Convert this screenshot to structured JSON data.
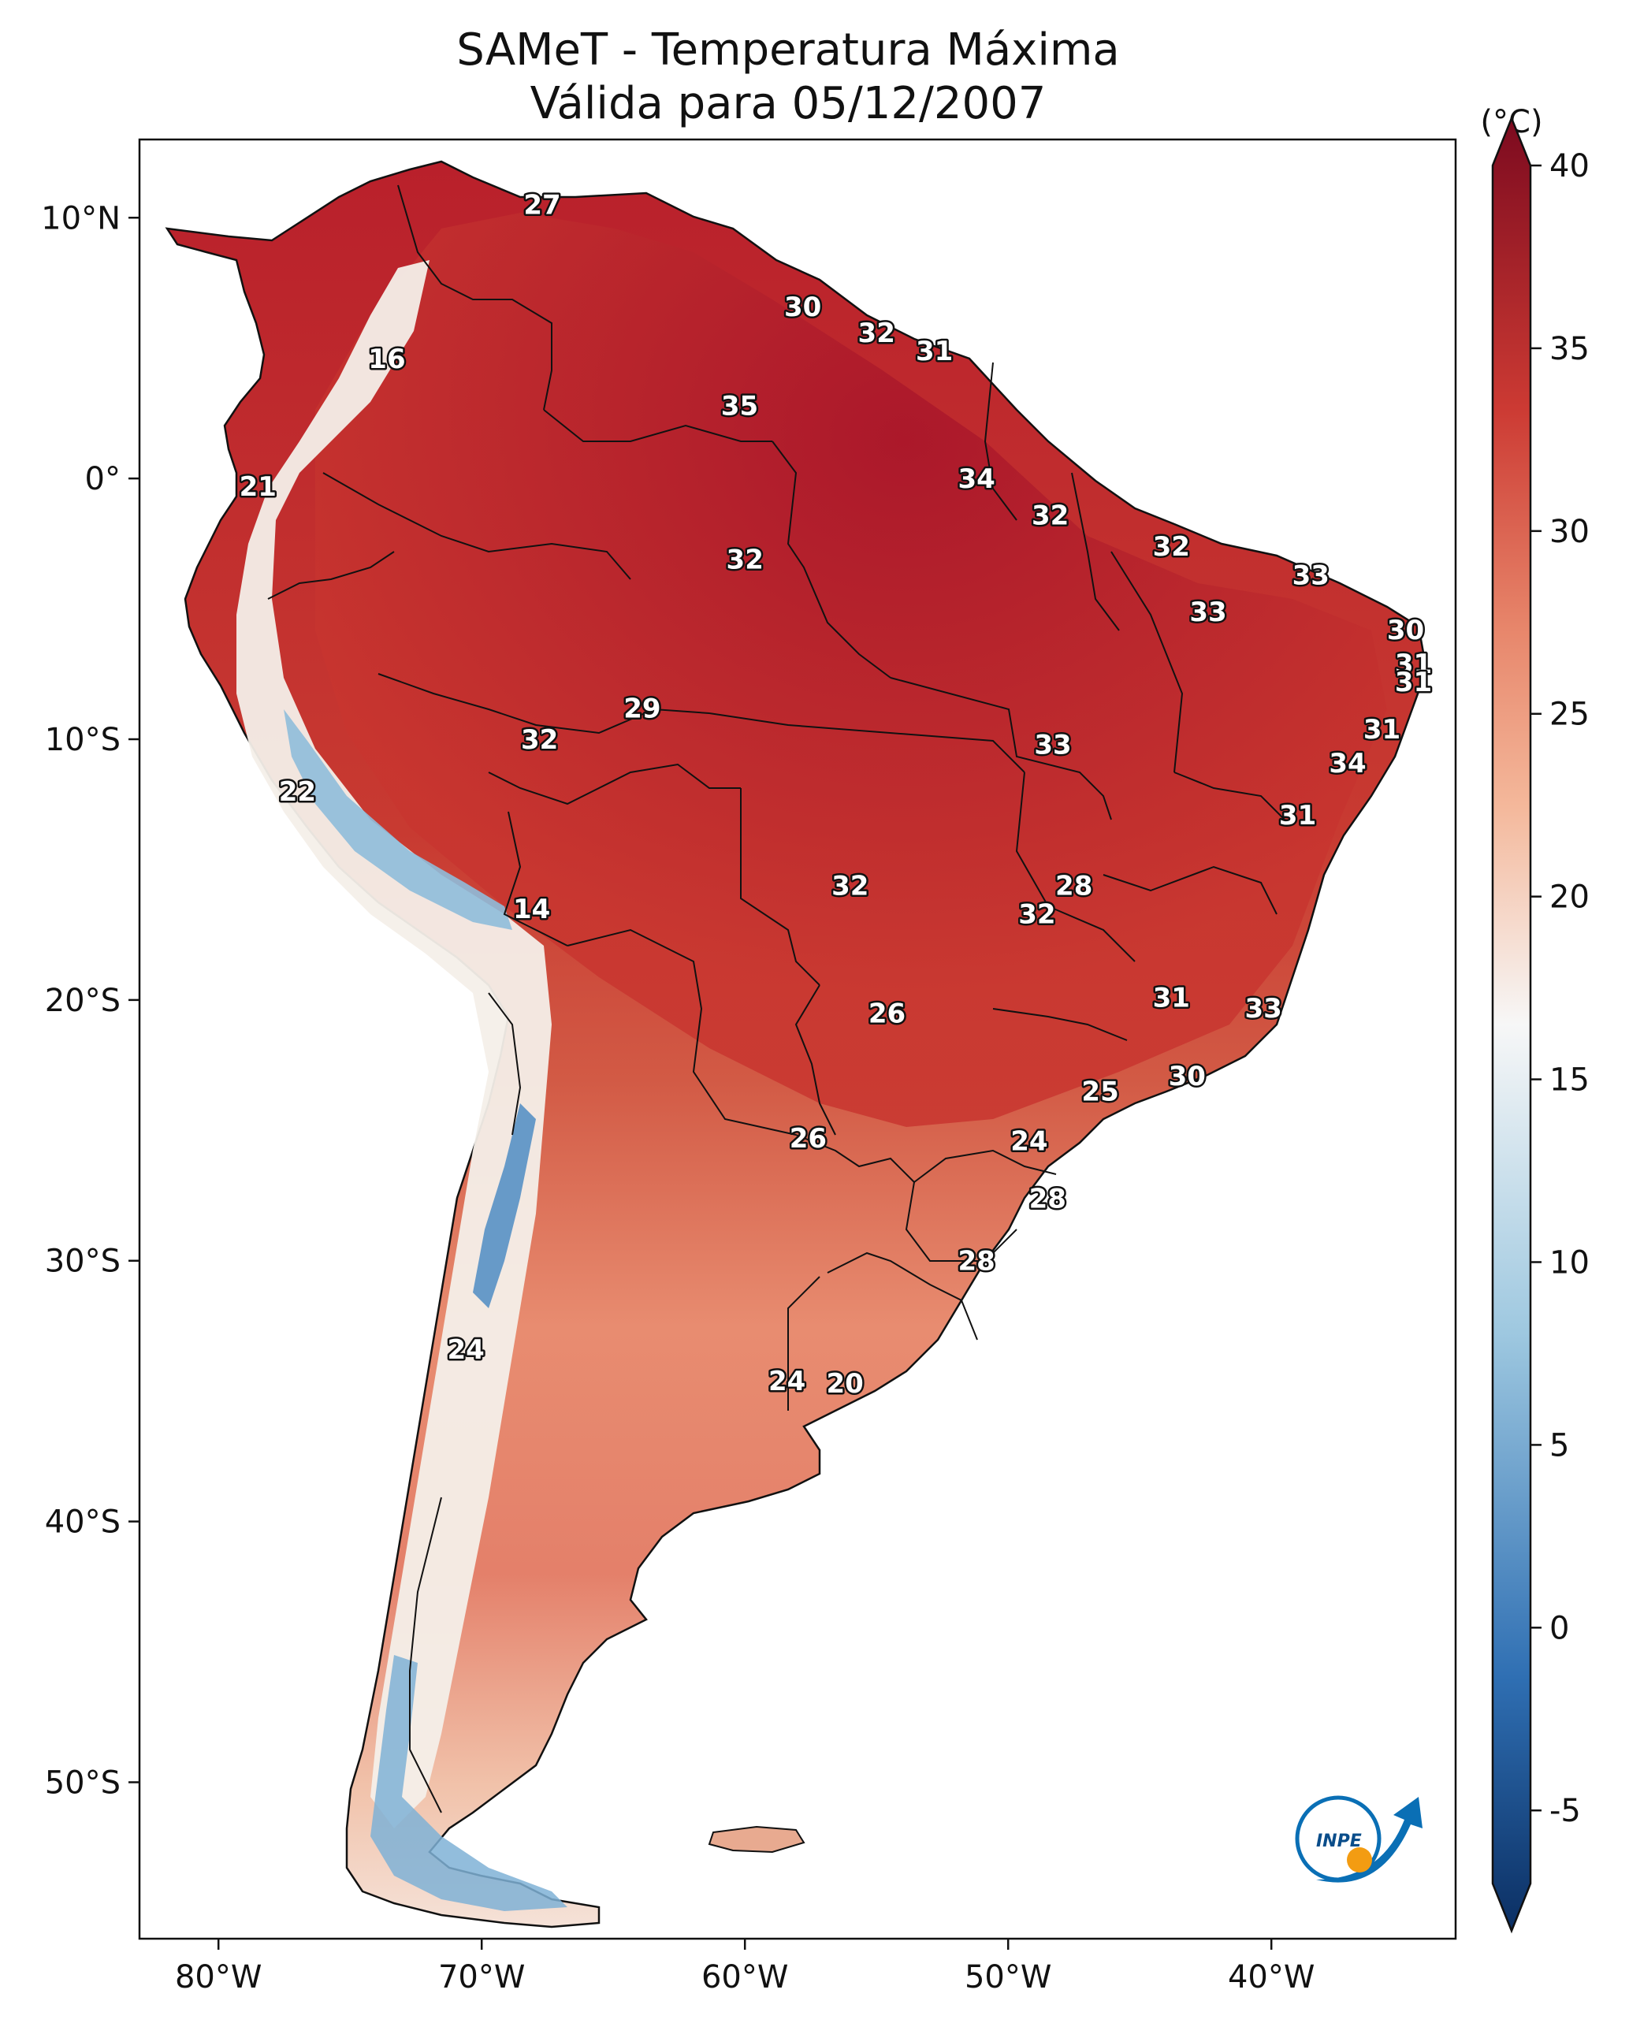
{
  "title": {
    "line1": "SAMeT - Temperatura Máxima",
    "line2": "Válida para 05/12/2007"
  },
  "map": {
    "lon_range": [
      -83,
      -33
    ],
    "lat_range": [
      -56,
      13
    ],
    "x_ticks": [
      {
        "lon": -80,
        "label": "80°W"
      },
      {
        "lon": -70,
        "label": "70°W"
      },
      {
        "lon": -60,
        "label": "60°W"
      },
      {
        "lon": -50,
        "label": "50°W"
      },
      {
        "lon": -40,
        "label": "40°W"
      }
    ],
    "y_ticks": [
      {
        "lat": 10,
        "label": "10°N"
      },
      {
        "lat": 0,
        "label": "0°"
      },
      {
        "lat": -10,
        "label": "10°S"
      },
      {
        "lat": -20,
        "label": "20°S"
      },
      {
        "lat": -30,
        "label": "30°S"
      },
      {
        "lat": -40,
        "label": "40°S"
      },
      {
        "lat": -50,
        "label": "50°S"
      }
    ]
  },
  "colorbar": {
    "unit": "(°C)",
    "min": -7,
    "max": 40,
    "ticks": [
      {
        "value": 40,
        "label": "40"
      },
      {
        "value": 35,
        "label": "35"
      },
      {
        "value": 30,
        "label": "30"
      },
      {
        "value": 25,
        "label": "25"
      },
      {
        "value": 20,
        "label": "20"
      },
      {
        "value": 15,
        "label": "15"
      },
      {
        "value": 10,
        "label": "10"
      },
      {
        "value": 5,
        "label": "5"
      },
      {
        "value": 0,
        "label": "0"
      },
      {
        "value": -5,
        "label": "-5"
      }
    ],
    "colors": {
      "c_low": "#0b2f63",
      "c_blue": "#2f6fb3",
      "c_lightblue": "#9ec8e0",
      "c_white": "#f7f7f7",
      "c_peach": "#f4b89b",
      "c_salmon": "#e7856a",
      "c_red": "#cc3a33",
      "c_darkred": "#7c0a1f"
    }
  },
  "station_values": [
    {
      "lon": -67.7,
      "lat": 10.5,
      "value": "27"
    },
    {
      "lon": -57.8,
      "lat": 6.6,
      "value": "30"
    },
    {
      "lon": -55.0,
      "lat": 5.6,
      "value": "32"
    },
    {
      "lon": -52.8,
      "lat": 4.9,
      "value": "31"
    },
    {
      "lon": -73.6,
      "lat": 4.6,
      "value": "16"
    },
    {
      "lon": -60.2,
      "lat": 2.8,
      "value": "35"
    },
    {
      "lon": -51.2,
      "lat": 0.0,
      "value": "34"
    },
    {
      "lon": -78.5,
      "lat": -0.3,
      "value": "21"
    },
    {
      "lon": -48.4,
      "lat": -1.4,
      "value": "32"
    },
    {
      "lon": -43.8,
      "lat": -2.6,
      "value": "32"
    },
    {
      "lon": -60.0,
      "lat": -3.1,
      "value": "32"
    },
    {
      "lon": -38.5,
      "lat": -3.7,
      "value": "33"
    },
    {
      "lon": -42.4,
      "lat": -5.1,
      "value": "33"
    },
    {
      "lon": -34.9,
      "lat": -5.8,
      "value": "30"
    },
    {
      "lon": -34.6,
      "lat": -7.1,
      "value": "31"
    },
    {
      "lon": -34.6,
      "lat": -7.8,
      "value": "31"
    },
    {
      "lon": -63.9,
      "lat": -8.8,
      "value": "29"
    },
    {
      "lon": -35.8,
      "lat": -9.6,
      "value": "31"
    },
    {
      "lon": -67.8,
      "lat": -10.0,
      "value": "32"
    },
    {
      "lon": -48.3,
      "lat": -10.2,
      "value": "33"
    },
    {
      "lon": -37.1,
      "lat": -10.9,
      "value": "34"
    },
    {
      "lon": -77.0,
      "lat": -12.0,
      "value": "22"
    },
    {
      "lon": -39.0,
      "lat": -12.9,
      "value": "31"
    },
    {
      "lon": -47.5,
      "lat": -15.6,
      "value": "28"
    },
    {
      "lon": -56.0,
      "lat": -15.6,
      "value": "32"
    },
    {
      "lon": -68.1,
      "lat": -16.5,
      "value": "14"
    },
    {
      "lon": -48.9,
      "lat": -16.7,
      "value": "32"
    },
    {
      "lon": -43.8,
      "lat": -19.9,
      "value": "31"
    },
    {
      "lon": -40.3,
      "lat": -20.3,
      "value": "33"
    },
    {
      "lon": -54.6,
      "lat": -20.5,
      "value": "26"
    },
    {
      "lon": -43.2,
      "lat": -22.9,
      "value": "30"
    },
    {
      "lon": -46.5,
      "lat": -23.5,
      "value": "25"
    },
    {
      "lon": -57.6,
      "lat": -25.3,
      "value": "26"
    },
    {
      "lon": -49.2,
      "lat": -25.4,
      "value": "24"
    },
    {
      "lon": -48.5,
      "lat": -27.6,
      "value": "28"
    },
    {
      "lon": -51.2,
      "lat": -30.0,
      "value": "28"
    },
    {
      "lon": -70.6,
      "lat": -33.4,
      "value": "24"
    },
    {
      "lon": -58.4,
      "lat": -34.6,
      "value": "24"
    },
    {
      "lon": -56.2,
      "lat": -34.7,
      "value": "20"
    }
  ],
  "logo": {
    "text": "INPE"
  }
}
